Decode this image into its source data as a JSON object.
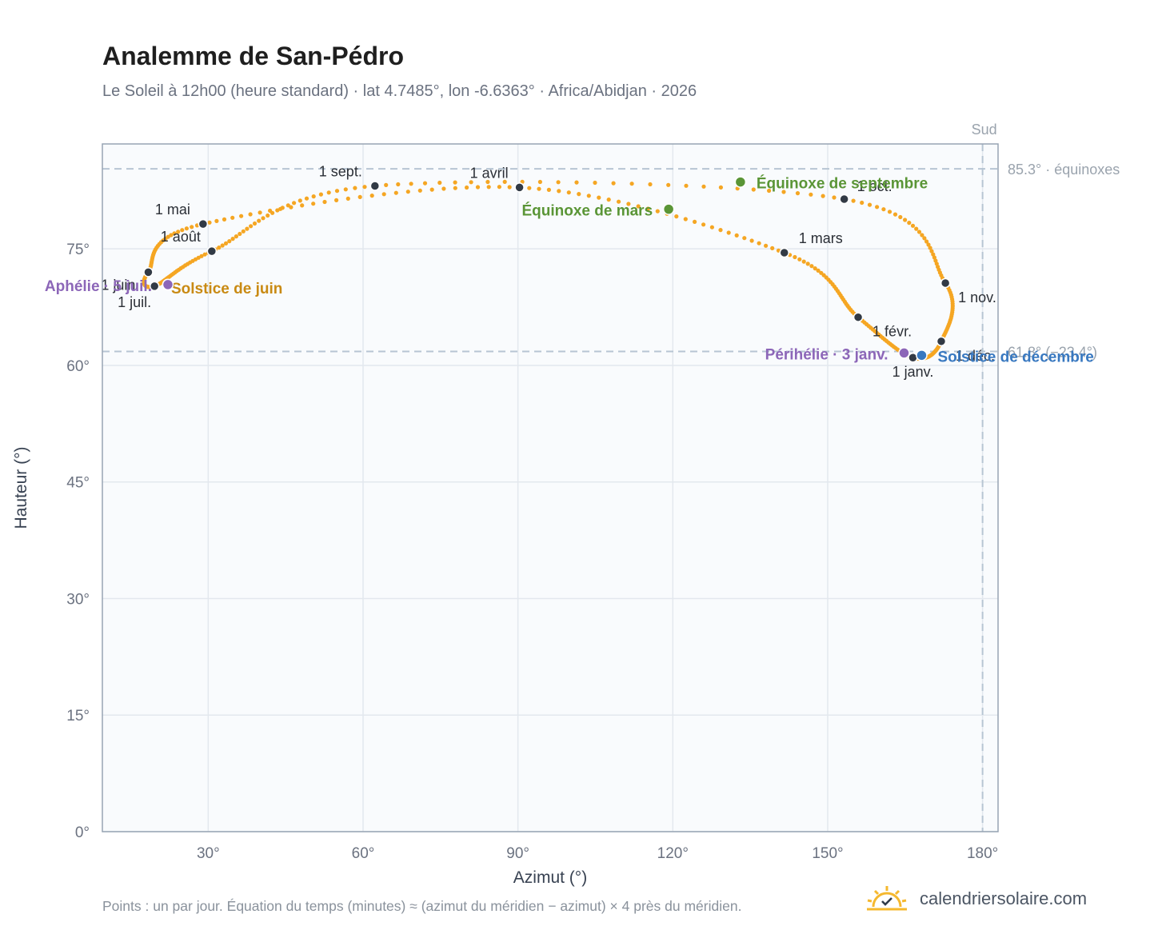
{
  "header": {
    "title": "Analemme de San-Pédro",
    "subtitle": "Le Soleil à 12h00 (heure standard) · lat 4.7485°, lon -6.6363° · Africa/Abidjan · 2026"
  },
  "footer": {
    "note": "Points : un par jour. Équation du temps (minutes) ≈ (azimut du méridien − azimut) × 4 près du méridien.",
    "brand": "calendriersolaire.com",
    "brand_icon": "sun-check-icon"
  },
  "colors": {
    "curve": "#f5a623",
    "month_marker": "#323a45",
    "equinox": "#5a9536",
    "june_solstice": "#c98a13",
    "december_solstice": "#3878c0",
    "apsis": "#8c66b8",
    "plot_bg": "#f9fbfd",
    "grid": "#e3e8ee",
    "reference_line": "#b7c5d3"
  },
  "chart_data": {
    "type": "scatter",
    "title": "Analemme de San-Pédro",
    "xlabel": "Azimut (°)",
    "ylabel": "Hauteur (°)",
    "xlim": [
      9.5,
      183
    ],
    "ylim": [
      0,
      88.5
    ],
    "xticks": [
      30,
      60,
      90,
      120,
      150,
      180
    ],
    "xtick_labels": [
      "30°",
      "60°",
      "90°",
      "120°",
      "150°",
      "180°"
    ],
    "yticks": [
      0,
      15,
      30,
      45,
      60,
      75
    ],
    "ytick_labels": [
      "0°",
      "15°",
      "30°",
      "45°",
      "60°",
      "75°"
    ],
    "grid": true,
    "legend": "none",
    "reference_lines": [
      {
        "axis": "x",
        "value": 180,
        "label": "Sud"
      },
      {
        "axis": "y",
        "value": 85.3,
        "label": "85.3° · équinoxes"
      },
      {
        "axis": "y",
        "value": 61.8,
        "label": "61.8° (−23.4°)"
      }
    ],
    "monthly_points": [
      {
        "label": "1 janv.",
        "azimuth": 166.5,
        "altitude": 61.0
      },
      {
        "label": "1 févr.",
        "azimuth": 155.9,
        "altitude": 66.2
      },
      {
        "label": "1 mars",
        "azimuth": 141.6,
        "altitude": 74.5
      },
      {
        "label": "1 avril",
        "azimuth": 90.3,
        "altitude": 82.9
      },
      {
        "label": "1 mai",
        "azimuth": 29.0,
        "altitude": 78.2
      },
      {
        "label": "1 juin",
        "azimuth": 18.4,
        "altitude": 72.0
      },
      {
        "label": "1 juil.",
        "azimuth": 19.6,
        "altitude": 70.2
      },
      {
        "label": "1 août",
        "azimuth": 30.7,
        "altitude": 74.7
      },
      {
        "label": "1 sept.",
        "azimuth": 62.3,
        "altitude": 83.1
      },
      {
        "label": "1 oct.",
        "azimuth": 153.2,
        "altitude": 81.4
      },
      {
        "label": "1 nov.",
        "azimuth": 172.8,
        "altitude": 70.6
      },
      {
        "label": "1 déc.",
        "azimuth": 172.0,
        "altitude": 63.1
      }
    ],
    "events": [
      {
        "label": "Équinoxe de mars",
        "azimuth": 119.2,
        "altitude": 80.1,
        "kind": "equinox"
      },
      {
        "label": "Équinoxe de septembre",
        "azimuth": 133.1,
        "altitude": 83.6,
        "kind": "equinox"
      },
      {
        "label": "Solstice de juin",
        "azimuth": 22.2,
        "altitude": 70.4,
        "kind": "june_solstice"
      },
      {
        "label": "Solstice de décembre",
        "azimuth": 168.2,
        "altitude": 61.3,
        "kind": "december_solstice"
      },
      {
        "label": "Aphélie · 5 juil.",
        "azimuth": 22.2,
        "altitude": 70.4,
        "kind": "apsis"
      },
      {
        "label": "Périhélie · 3 janv.",
        "azimuth": 164.8,
        "altitude": 61.6,
        "kind": "apsis"
      }
    ]
  }
}
